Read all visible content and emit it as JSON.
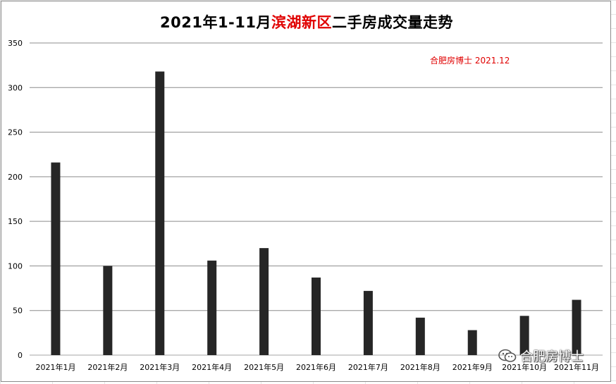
{
  "title": {
    "prefix": "2021年1-11月",
    "highlight": "滨湖新区",
    "suffix": "二手房成交量走势"
  },
  "annotation": "合肥房博士 2021.12",
  "watermark": {
    "text": "合肥房博士",
    "icon": "wechat-icon"
  },
  "colors": {
    "bar": "#262626",
    "title_highlight": "#e00000",
    "annotation": "#e00000",
    "gridline": "#8c8c8c"
  },
  "chart_data": {
    "type": "bar",
    "categories": [
      "2021年1月",
      "2021年2月",
      "2021年3月",
      "2021年4月",
      "2021年5月",
      "2021年6月",
      "2021年7月",
      "2021年8月",
      "2021年9月",
      "2021年10月",
      "2021年11月"
    ],
    "series": [
      {
        "values": [
          216,
          100,
          318,
          106,
          120,
          87,
          72,
          42,
          28,
          44,
          62
        ]
      }
    ],
    "title": "2021年1-11月滨湖新区二手房成交量走势",
    "xlabel": "",
    "ylabel": "",
    "ylim": [
      0,
      350
    ],
    "yticks": [
      0,
      50,
      100,
      150,
      200,
      250,
      300,
      350
    ],
    "grid": true,
    "legend": "none"
  }
}
